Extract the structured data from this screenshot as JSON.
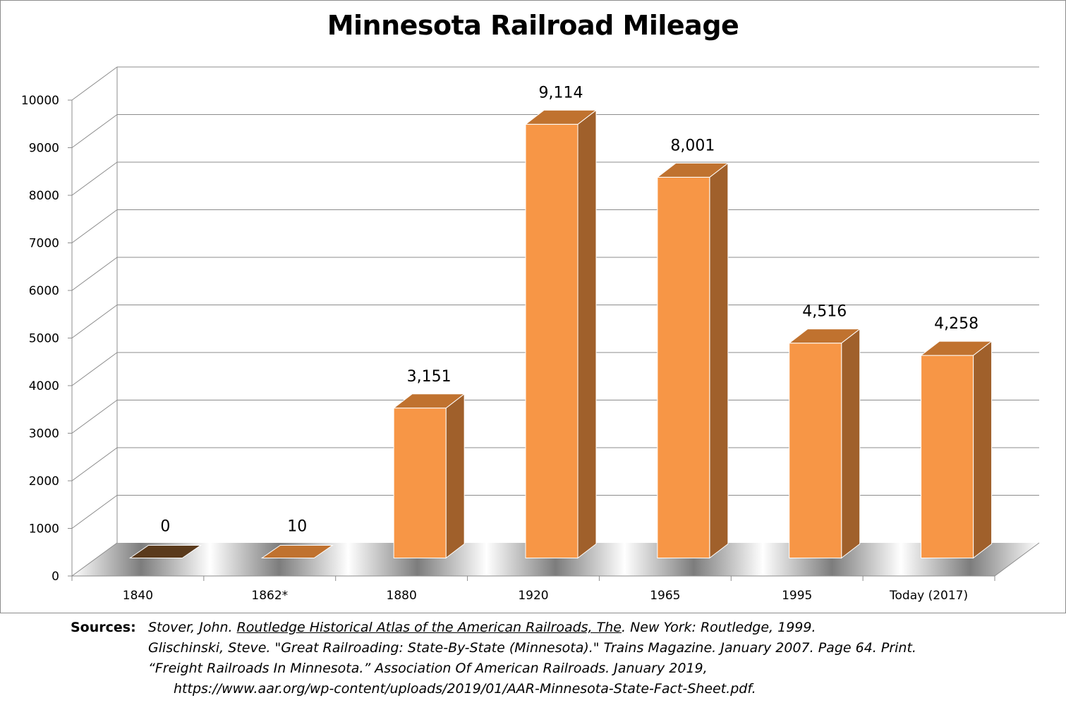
{
  "chart_data": {
    "type": "bar",
    "title": "Minnesota Railroad Mileage",
    "categories": [
      "1840",
      "1862*",
      "1880",
      "1920",
      "1965",
      "1995",
      "Today  (2017)"
    ],
    "values": [
      0,
      10,
      3151,
      9114,
      8001,
      4516,
      4258
    ],
    "data_labels": [
      "0",
      "10",
      "3,151",
      "9,114",
      "8,001",
      "4,516",
      "4,258"
    ],
    "ylim": [
      0,
      10000
    ],
    "yticks": [
      "0",
      "1000",
      "2000",
      "3000",
      "4000",
      "5000",
      "6000",
      "7000",
      "8000",
      "9000",
      "10000"
    ],
    "grid": true,
    "legend": "none"
  },
  "colors": {
    "bar_front": "#f79646",
    "bar_side": "#a0602b",
    "bar_top": "#c0722f",
    "bar_1840": "#5a3a1c",
    "grid": "#8c8c8c"
  },
  "sources": {
    "label": "Sources:",
    "line1_pre": "Stover, John. ",
    "line1_underlined": "Routledge Historical Atlas of the American Railroads, The",
    "line1_post": ". New York: Routledge, 1999.",
    "line2": "Glischinski, Steve. \"Great Railroading: State-By-State (Minnesota).\" Trains Magazine. January 2007. Page 64. Print.",
    "line3": "“Freight Railroads In Minnesota.” Association Of American Railroads. January 2019,",
    "line4": "https://www.aar.org/wp-content/uploads/2019/01/AAR-Minnesota-State-Fact-Sheet.pdf."
  }
}
